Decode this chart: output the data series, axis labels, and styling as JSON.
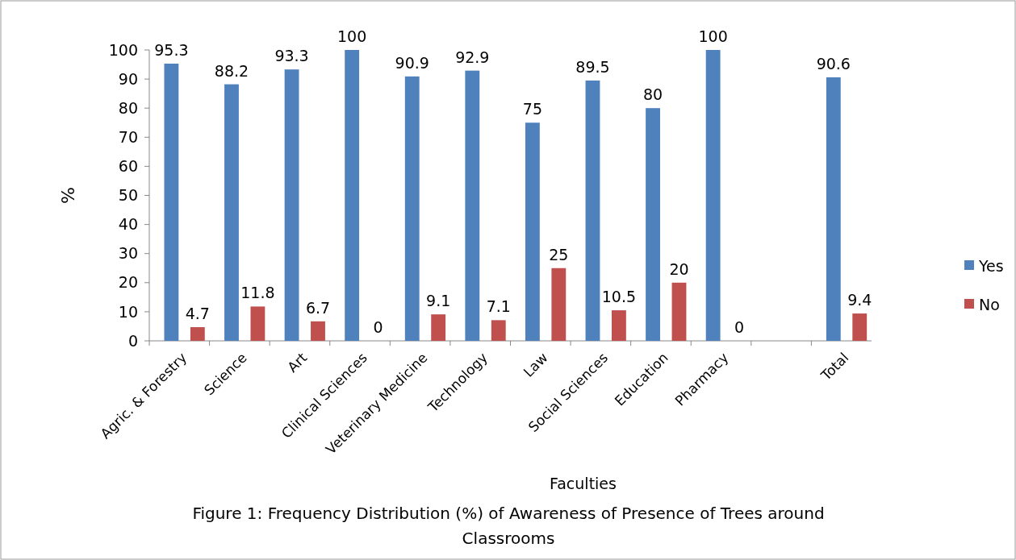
{
  "chart_data": {
    "type": "bar",
    "title": "Figure 1: Frequency Distribution (%) of Awareness of Presence of Trees around Classrooms",
    "xlabel": "Faculties",
    "ylabel": "%",
    "categories": [
      "Agric. & Forestry",
      "Science",
      "Art",
      "Clinical Sciences",
      "Veterinary Medicine",
      "Technology",
      "Law",
      "Social Sciences",
      "Education",
      "Pharmacy",
      null,
      "Total"
    ],
    "series": [
      {
        "name": "Yes",
        "color": "#4f81bd",
        "values": [
          95.3,
          88.2,
          93.3,
          100,
          90.9,
          92.9,
          75,
          89.5,
          80,
          100,
          null,
          90.6
        ]
      },
      {
        "name": "No",
        "color": "#c0504d",
        "values": [
          4.7,
          11.8,
          6.7,
          0,
          9.1,
          7.1,
          25,
          10.5,
          20,
          0,
          null,
          9.4
        ]
      }
    ],
    "ylim": [
      0,
      100
    ],
    "yticks": [
      0,
      10,
      20,
      30,
      40,
      50,
      60,
      70,
      80,
      90,
      100
    ],
    "data_labels": true,
    "legend": "right"
  }
}
